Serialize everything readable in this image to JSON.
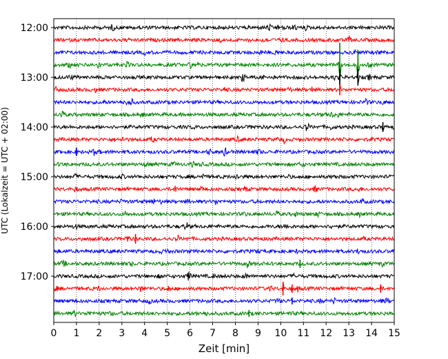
{
  "chart_data": {
    "type": "line",
    "chart_kind": "helicorder",
    "xlabel": "Zeit  [min]",
    "ylabel": "UTC (Lokalzeit = UTC + 02:00)",
    "xlim": [
      0,
      15
    ],
    "x_ticks": [
      0,
      1,
      2,
      3,
      4,
      5,
      6,
      7,
      8,
      9,
      10,
      11,
      12,
      13,
      14,
      15
    ],
    "x_tick_labels": [
      "0",
      "1",
      "2",
      "3",
      "4",
      "5",
      "6",
      "7",
      "8",
      "9",
      "10",
      "11",
      "12",
      "13",
      "14",
      "15"
    ],
    "x_grid": "dotted",
    "y_ticks": [
      {
        "row": 0,
        "label": "12:00"
      },
      {
        "row": 4,
        "label": "13:00"
      },
      {
        "row": 8,
        "label": "14:00"
      },
      {
        "row": 12,
        "label": "15:00"
      },
      {
        "row": 16,
        "label": "16:00"
      },
      {
        "row": 20,
        "label": "17:00"
      }
    ],
    "row_count": 24,
    "row_minutes": 15,
    "trace_colors": [
      "#000000",
      "#ff0000",
      "#0000ff",
      "#008000"
    ],
    "events": [
      {
        "row": 3,
        "x": 12.6,
        "amplitude": 32
      },
      {
        "row": 3,
        "x": 13.4,
        "amplitude": 22
      },
      {
        "row": 4,
        "x": 12.6,
        "amplitude": 12
      },
      {
        "row": 4,
        "x": 13.4,
        "amplitude": 12
      },
      {
        "row": 5,
        "x": 12.6,
        "amplitude": 8
      },
      {
        "row": 8,
        "x": 14.5,
        "amplitude": 7
      },
      {
        "row": 10,
        "x": 1.0,
        "amplitude": 6
      },
      {
        "row": 17,
        "x": 3.6,
        "amplitude": 7
      },
      {
        "row": 19,
        "x": 10.85,
        "amplitude": 6
      },
      {
        "row": 21,
        "x": 10.1,
        "amplitude": 10
      },
      {
        "row": 21,
        "x": 10.5,
        "amplitude": 6
      },
      {
        "row": 21,
        "x": 14.4,
        "amplitude": 6
      },
      {
        "row": 22,
        "x": 10.5,
        "amplitude": 5
      },
      {
        "row": 23,
        "x": 8.6,
        "amplitude": 5
      }
    ]
  }
}
